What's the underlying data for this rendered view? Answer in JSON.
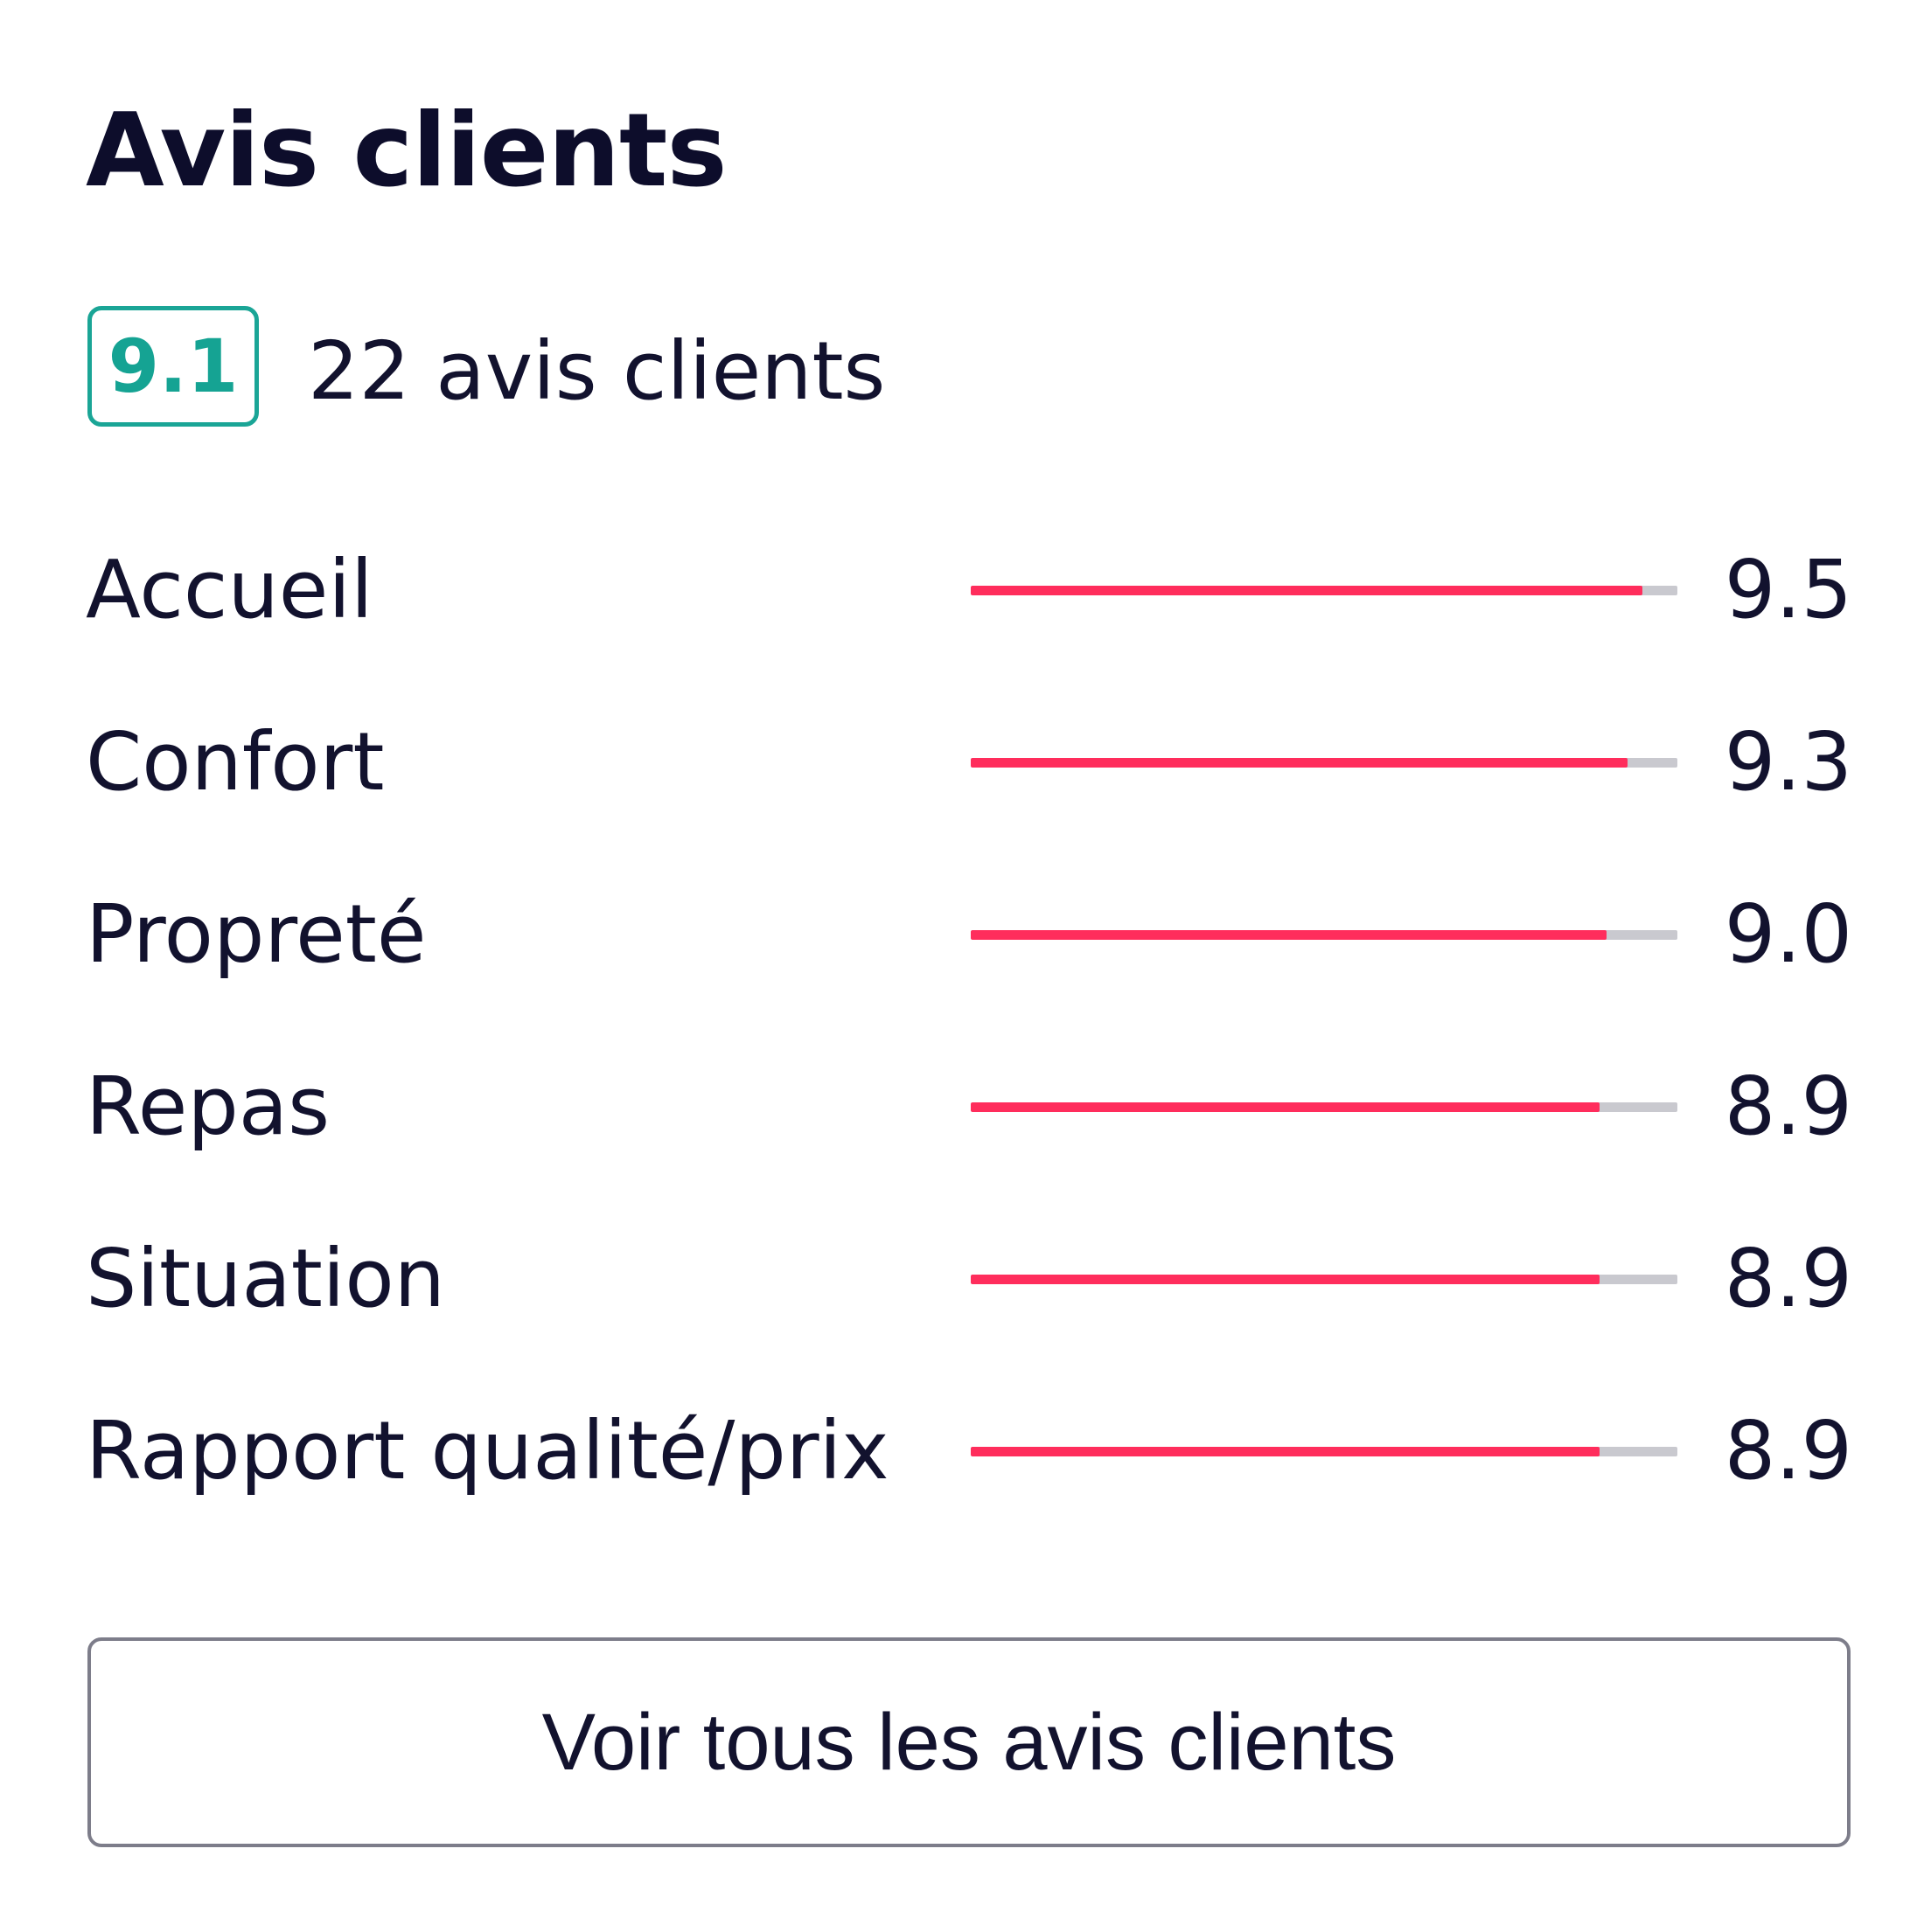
{
  "reviews": {
    "title": "Avis clients",
    "overall_score": "9.1",
    "review_count_text": "22 avis clients",
    "ratings": [
      {
        "label": "Accueil",
        "score": "9.5",
        "fraction": 0.95
      },
      {
        "label": "Confort",
        "score": "9.3",
        "fraction": 0.93
      },
      {
        "label": "Propreté",
        "score": "9.0",
        "fraction": 0.9
      },
      {
        "label": "Repas",
        "score": "8.9",
        "fraction": 0.89
      },
      {
        "label": "Situation",
        "score": "8.9",
        "fraction": 0.89
      },
      {
        "label": "Rapport qualité/prix",
        "score": "8.9",
        "fraction": 0.89
      }
    ],
    "see_all_label": "Voir tous les avis clients"
  },
  "colors": {
    "badge_accent": "#15a393",
    "bar_fill": "#ff2d5c",
    "bar_track": "#c9c9cf",
    "text": "#12122e"
  }
}
